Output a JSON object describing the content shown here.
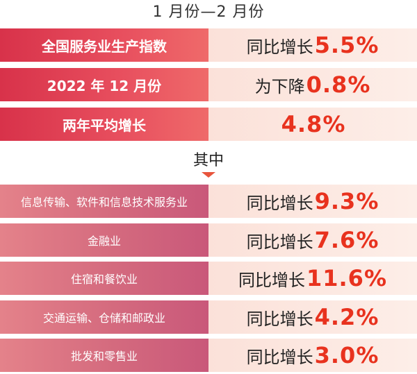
{
  "header": {
    "period": "1 月份—2 月份"
  },
  "top_rows": [
    {
      "label": "全国服务业生产指数",
      "prefix": "同比增长",
      "value": "5.5%"
    },
    {
      "label": "2022 年 12 月份",
      "prefix": "为下降",
      "value": "0.8%"
    },
    {
      "label": "两年平均增长",
      "prefix": "",
      "value": "4.8%"
    }
  ],
  "divider": {
    "label": "其中"
  },
  "sub_rows": [
    {
      "label": "信息传输、软件和信息技术服务业",
      "prefix": "同比增长",
      "value": "9.3%"
    },
    {
      "label": "金融业",
      "prefix": "同比增长",
      "value": "7.6%"
    },
    {
      "label": "住宿和餐饮业",
      "prefix": "同比增长",
      "value": "11.6%"
    },
    {
      "label": "交通运输、仓储和邮政业",
      "prefix": "同比增长",
      "value": "4.2%"
    },
    {
      "label": "批发和零售业",
      "prefix": "同比增长",
      "value": "3.0%"
    }
  ],
  "colors": {
    "top_label": "#d8324a",
    "sub_label": "#c9587a",
    "value_bg": "#fbe1d9",
    "value_text": "#e8321e",
    "arrow": "#e8553d"
  }
}
